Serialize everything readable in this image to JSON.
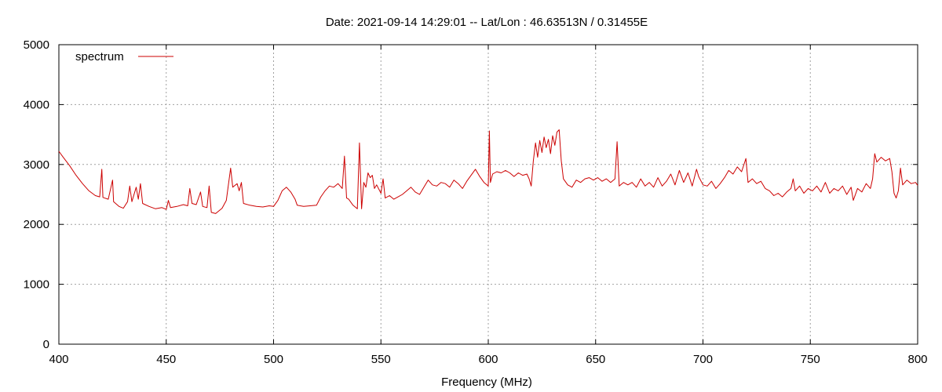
{
  "chart_data": {
    "type": "line",
    "title": "Date: 2021-09-14 14:29:01  --  Lat/Lon : 46.63513N / 0.31455E",
    "xlabel": "Frequency (MHz)",
    "ylabel": "",
    "xlim": [
      400,
      800
    ],
    "ylim": [
      0,
      5000
    ],
    "x_ticks": [
      400,
      450,
      500,
      550,
      600,
      650,
      700,
      750,
      800
    ],
    "y_ticks": [
      0,
      1000,
      2000,
      3000,
      4000,
      5000
    ],
    "grid": true,
    "legend": "top-left",
    "series": [
      {
        "name": "spectrum",
        "color": "#cc0000",
        "points": [
          [
            400,
            3220
          ],
          [
            402,
            3120
          ],
          [
            405,
            2980
          ],
          [
            408,
            2820
          ],
          [
            411,
            2680
          ],
          [
            414,
            2560
          ],
          [
            417,
            2480
          ],
          [
            419,
            2460
          ],
          [
            420,
            2920
          ],
          [
            420.5,
            2450
          ],
          [
            423,
            2420
          ],
          [
            425,
            2740
          ],
          [
            425.5,
            2380
          ],
          [
            428,
            2300
          ],
          [
            430,
            2270
          ],
          [
            432,
            2380
          ],
          [
            433,
            2640
          ],
          [
            434,
            2380
          ],
          [
            436,
            2620
          ],
          [
            437,
            2420
          ],
          [
            438,
            2680
          ],
          [
            439,
            2350
          ],
          [
            442,
            2300
          ],
          [
            445,
            2260
          ],
          [
            448,
            2280
          ],
          [
            450,
            2250
          ],
          [
            451,
            2400
          ],
          [
            452,
            2280
          ],
          [
            455,
            2300
          ],
          [
            458,
            2330
          ],
          [
            460,
            2310
          ],
          [
            461,
            2600
          ],
          [
            462,
            2350
          ],
          [
            464,
            2330
          ],
          [
            466,
            2540
          ],
          [
            467,
            2300
          ],
          [
            469,
            2280
          ],
          [
            470,
            2640
          ],
          [
            471,
            2200
          ],
          [
            473,
            2180
          ],
          [
            476,
            2270
          ],
          [
            478,
            2400
          ],
          [
            480,
            2940
          ],
          [
            481,
            2620
          ],
          [
            483,
            2680
          ],
          [
            484,
            2560
          ],
          [
            485,
            2700
          ],
          [
            486,
            2350
          ],
          [
            489,
            2320
          ],
          [
            492,
            2300
          ],
          [
            495,
            2290
          ],
          [
            498,
            2310
          ],
          [
            500,
            2300
          ],
          [
            502,
            2400
          ],
          [
            504,
            2560
          ],
          [
            506,
            2620
          ],
          [
            508,
            2540
          ],
          [
            510,
            2420
          ],
          [
            511,
            2320
          ],
          [
            514,
            2300
          ],
          [
            517,
            2310
          ],
          [
            520,
            2320
          ],
          [
            522,
            2460
          ],
          [
            524,
            2560
          ],
          [
            526,
            2640
          ],
          [
            528,
            2620
          ],
          [
            530,
            2680
          ],
          [
            532,
            2600
          ],
          [
            533,
            3140
          ],
          [
            534,
            2440
          ],
          [
            535,
            2420
          ],
          [
            537,
            2320
          ],
          [
            539,
            2260
          ],
          [
            540,
            3360
          ],
          [
            541,
            2260
          ],
          [
            542,
            2700
          ],
          [
            543,
            2620
          ],
          [
            544,
            2860
          ],
          [
            545,
            2780
          ],
          [
            546,
            2820
          ],
          [
            547,
            2600
          ],
          [
            548,
            2660
          ],
          [
            550,
            2520
          ],
          [
            551,
            2760
          ],
          [
            552,
            2440
          ],
          [
            554,
            2480
          ],
          [
            556,
            2420
          ],
          [
            558,
            2460
          ],
          [
            560,
            2500
          ],
          [
            562,
            2560
          ],
          [
            564,
            2620
          ],
          [
            566,
            2540
          ],
          [
            568,
            2500
          ],
          [
            570,
            2620
          ],
          [
            572,
            2740
          ],
          [
            574,
            2660
          ],
          [
            576,
            2640
          ],
          [
            578,
            2700
          ],
          [
            580,
            2680
          ],
          [
            582,
            2620
          ],
          [
            584,
            2740
          ],
          [
            586,
            2680
          ],
          [
            588,
            2600
          ],
          [
            590,
            2720
          ],
          [
            592,
            2820
          ],
          [
            594,
            2920
          ],
          [
            596,
            2800
          ],
          [
            598,
            2700
          ],
          [
            600,
            2640
          ],
          [
            600.5,
            3560
          ],
          [
            601,
            2700
          ],
          [
            602,
            2840
          ],
          [
            604,
            2880
          ],
          [
            606,
            2860
          ],
          [
            608,
            2900
          ],
          [
            610,
            2860
          ],
          [
            612,
            2800
          ],
          [
            614,
            2860
          ],
          [
            616,
            2820
          ],
          [
            618,
            2840
          ],
          [
            619,
            2760
          ],
          [
            620,
            2640
          ],
          [
            621,
            3060
          ],
          [
            622,
            3360
          ],
          [
            623,
            3120
          ],
          [
            624,
            3400
          ],
          [
            625,
            3200
          ],
          [
            626,
            3460
          ],
          [
            627,
            3280
          ],
          [
            628,
            3420
          ],
          [
            629,
            3180
          ],
          [
            630,
            3480
          ],
          [
            631,
            3320
          ],
          [
            632,
            3540
          ],
          [
            633,
            3580
          ],
          [
            634,
            3060
          ],
          [
            635,
            2760
          ],
          [
            637,
            2660
          ],
          [
            639,
            2620
          ],
          [
            641,
            2740
          ],
          [
            643,
            2700
          ],
          [
            645,
            2760
          ],
          [
            647,
            2780
          ],
          [
            649,
            2740
          ],
          [
            651,
            2780
          ],
          [
            653,
            2720
          ],
          [
            655,
            2760
          ],
          [
            657,
            2700
          ],
          [
            659,
            2760
          ],
          [
            660,
            3380
          ],
          [
            661,
            2640
          ],
          [
            663,
            2700
          ],
          [
            665,
            2660
          ],
          [
            667,
            2700
          ],
          [
            669,
            2620
          ],
          [
            671,
            2760
          ],
          [
            673,
            2640
          ],
          [
            675,
            2700
          ],
          [
            677,
            2620
          ],
          [
            679,
            2780
          ],
          [
            681,
            2640
          ],
          [
            683,
            2720
          ],
          [
            685,
            2840
          ],
          [
            687,
            2660
          ],
          [
            689,
            2900
          ],
          [
            691,
            2700
          ],
          [
            693,
            2860
          ],
          [
            695,
            2640
          ],
          [
            697,
            2920
          ],
          [
            698,
            2800
          ],
          [
            700,
            2660
          ],
          [
            702,
            2640
          ],
          [
            704,
            2720
          ],
          [
            706,
            2600
          ],
          [
            708,
            2680
          ],
          [
            710,
            2780
          ],
          [
            712,
            2900
          ],
          [
            714,
            2840
          ],
          [
            716,
            2960
          ],
          [
            718,
            2880
          ],
          [
            720,
            3100
          ],
          [
            721,
            2700
          ],
          [
            723,
            2760
          ],
          [
            725,
            2680
          ],
          [
            727,
            2720
          ],
          [
            729,
            2600
          ],
          [
            731,
            2560
          ],
          [
            733,
            2480
          ],
          [
            735,
            2520
          ],
          [
            737,
            2460
          ],
          [
            739,
            2540
          ],
          [
            741,
            2600
          ],
          [
            742,
            2760
          ],
          [
            743,
            2560
          ],
          [
            745,
            2640
          ],
          [
            747,
            2520
          ],
          [
            749,
            2600
          ],
          [
            751,
            2560
          ],
          [
            753,
            2640
          ],
          [
            755,
            2540
          ],
          [
            757,
            2700
          ],
          [
            759,
            2520
          ],
          [
            761,
            2600
          ],
          [
            763,
            2560
          ],
          [
            765,
            2640
          ],
          [
            767,
            2500
          ],
          [
            769,
            2620
          ],
          [
            770,
            2400
          ],
          [
            772,
            2600
          ],
          [
            774,
            2540
          ],
          [
            776,
            2680
          ],
          [
            778,
            2600
          ],
          [
            779,
            2760
          ],
          [
            780,
            3180
          ],
          [
            781,
            3040
          ],
          [
            783,
            3120
          ],
          [
            785,
            3060
          ],
          [
            787,
            3100
          ],
          [
            788,
            2880
          ],
          [
            789,
            2520
          ],
          [
            790,
            2440
          ],
          [
            791,
            2560
          ],
          [
            792,
            2940
          ],
          [
            793,
            2660
          ],
          [
            795,
            2740
          ],
          [
            797,
            2680
          ],
          [
            799,
            2700
          ],
          [
            800,
            2650
          ]
        ]
      }
    ]
  }
}
